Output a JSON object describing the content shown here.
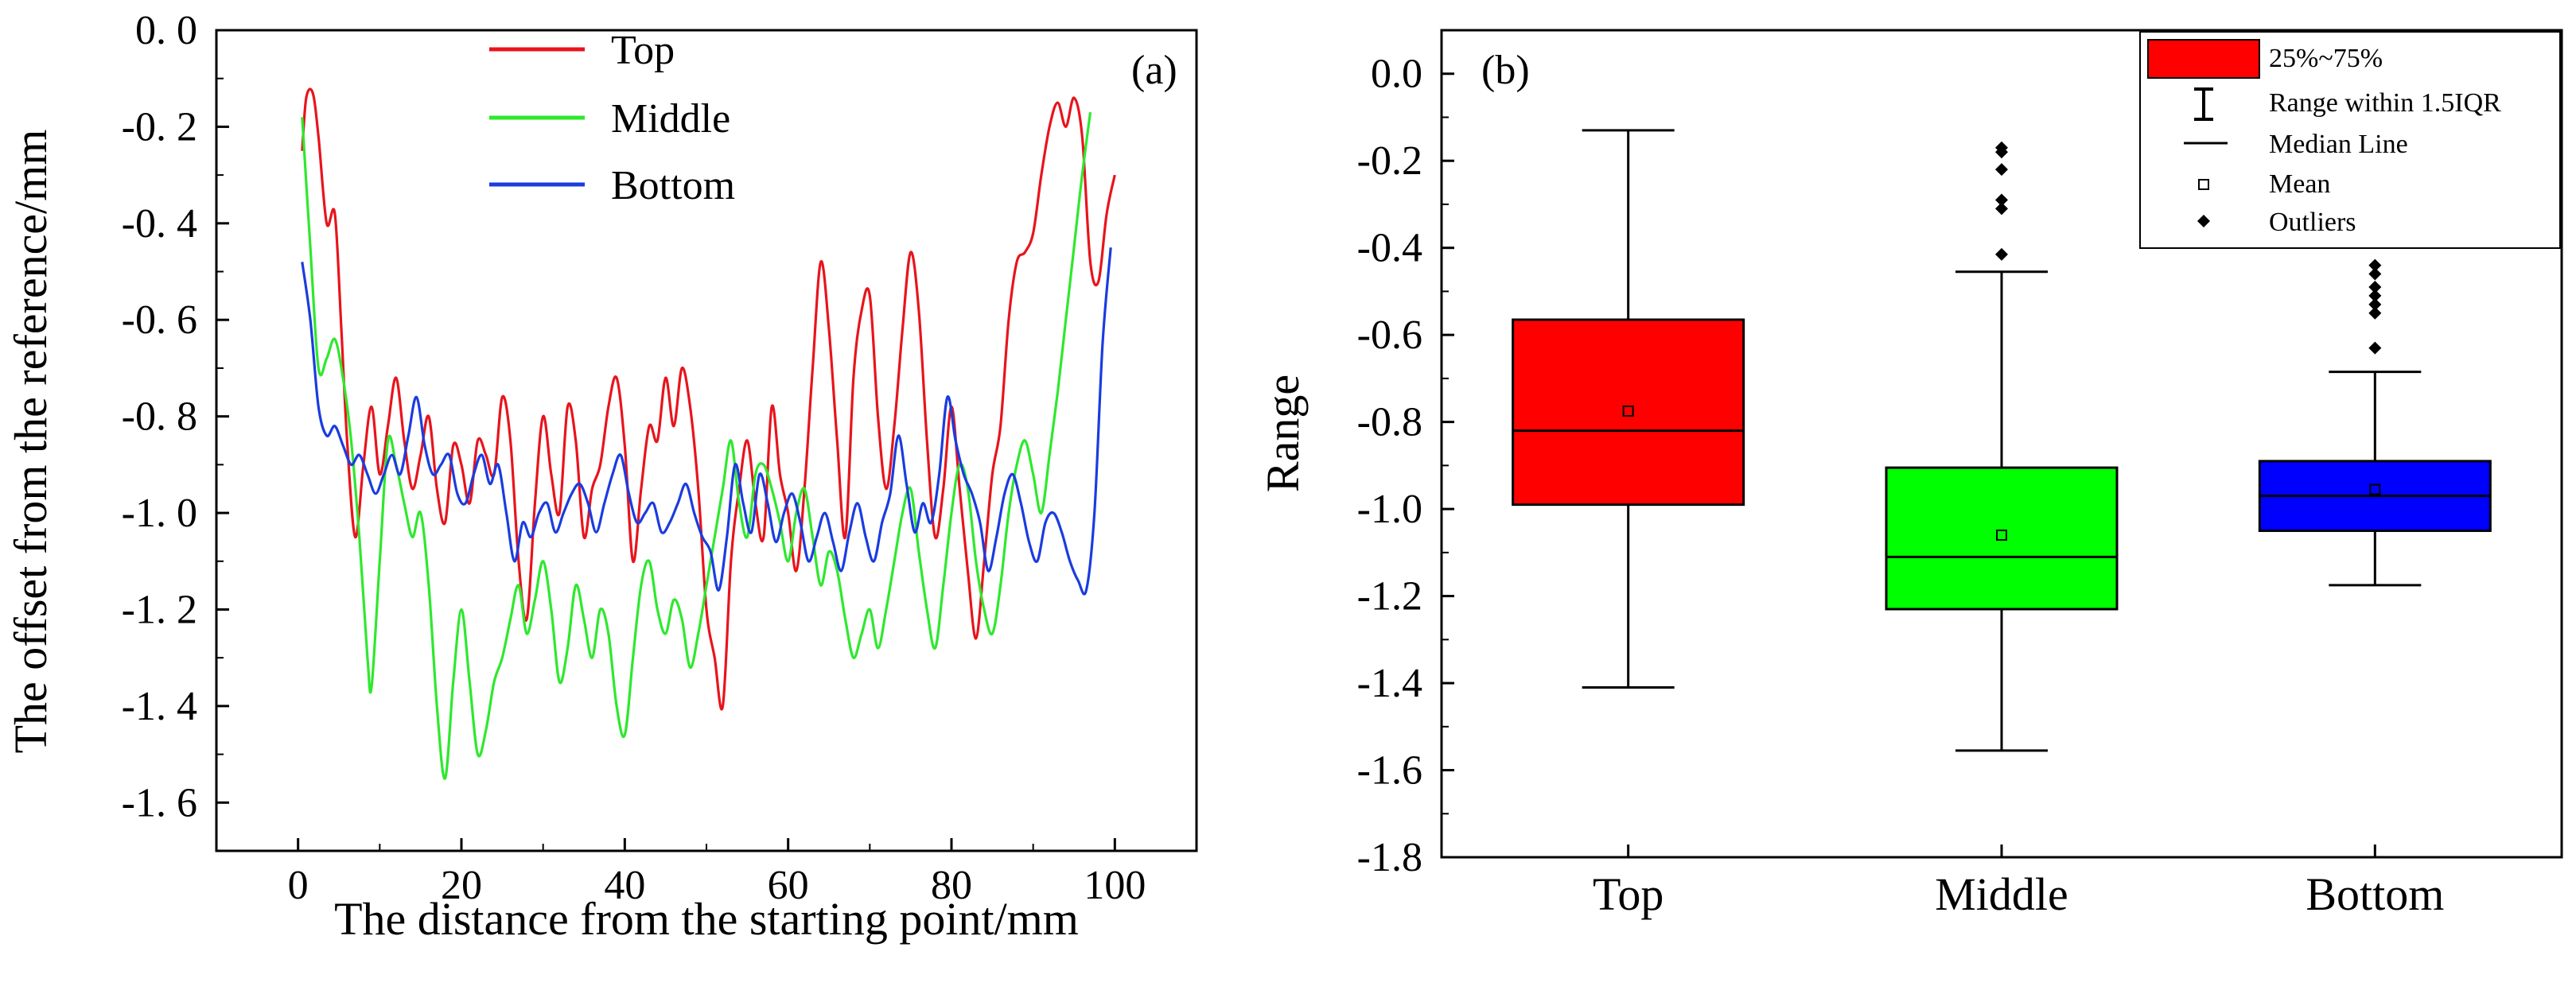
{
  "chart_data": [
    {
      "type": "line",
      "panel_label": "(a)",
      "xlabel": "The distance from the starting point/mm",
      "ylabel": "The offset from the reference/mm",
      "xlim": [
        -10,
        110
      ],
      "ylim": [
        -1.7,
        0.0
      ],
      "xticks": [
        0,
        20,
        40,
        60,
        80,
        100
      ],
      "xtick_labels": [
        "0",
        "20",
        "40",
        "60",
        "80",
        "100"
      ],
      "yticks": [
        0.0,
        -0.2,
        -0.4,
        -0.6,
        -0.8,
        -1.0,
        -1.2,
        -1.4,
        -1.6
      ],
      "ytick_labels": [
        "0. 0",
        "-0. 2",
        "-0. 4",
        "-0. 6",
        "-0. 8",
        "-1. 0",
        "-1. 2",
        "-1. 4",
        "-1. 6"
      ],
      "legend_position": "top-center",
      "series": [
        {
          "name": "Top",
          "color": "#e8141c",
          "x": [
            0.5,
            1.0,
            1.8,
            2.5,
            3.5,
            4.5,
            5.3,
            6.0,
            7.0,
            8.0,
            9.0,
            10.0,
            11.0,
            12.0,
            13.0,
            14.0,
            15.0,
            16.0,
            17.0,
            18.0,
            19.0,
            20.0,
            21.0,
            22.0,
            23.0,
            24.0,
            25.0,
            26.0,
            27.0,
            28.0,
            29.0,
            30.0,
            31.0,
            32.0,
            33.0,
            34.0,
            35.0,
            36.0,
            37.0,
            38.0,
            39.0,
            40.0,
            41.0,
            42.0,
            43.0,
            44.0,
            45.0,
            46.0,
            47.0,
            48.0,
            49.0,
            50.0,
            51.0,
            52.0,
            53.0,
            54.0,
            55.0,
            56.0,
            57.0,
            58.0,
            59.0,
            60.0,
            61.0,
            62.0,
            63.0,
            64.0,
            65.0,
            66.0,
            67.0,
            68.0,
            69.0,
            70.0,
            71.0,
            72.0,
            73.0,
            74.0,
            75.0,
            76.0,
            77.0,
            78.0,
            79.0,
            80.0,
            81.0,
            82.0,
            83.0,
            84.0,
            85.0,
            86.0,
            87.0,
            88.0,
            89.0,
            90.0,
            91.0,
            92.0,
            93.0,
            94.0,
            95.0,
            96.0,
            97.0,
            98.0,
            99.0,
            100.0
          ],
          "y": [
            -0.25,
            -0.14,
            -0.13,
            -0.22,
            -0.4,
            -0.38,
            -0.62,
            -0.85,
            -1.05,
            -0.9,
            -0.78,
            -0.92,
            -0.82,
            -0.72,
            -0.85,
            -0.95,
            -0.88,
            -0.8,
            -0.95,
            -1.02,
            -0.86,
            -0.9,
            -0.98,
            -0.85,
            -0.88,
            -0.92,
            -0.76,
            -0.85,
            -1.1,
            -1.22,
            -0.98,
            -0.8,
            -0.92,
            -1.0,
            -0.78,
            -0.85,
            -1.05,
            -0.95,
            -0.9,
            -0.78,
            -0.72,
            -0.86,
            -1.1,
            -0.95,
            -0.82,
            -0.85,
            -0.72,
            -0.82,
            -0.7,
            -0.78,
            -0.95,
            -1.2,
            -1.3,
            -1.4,
            -1.1,
            -0.95,
            -0.85,
            -0.98,
            -1.05,
            -0.78,
            -0.92,
            -1.0,
            -1.12,
            -0.95,
            -0.7,
            -0.48,
            -0.62,
            -0.85,
            -1.05,
            -0.72,
            -0.58,
            -0.55,
            -0.8,
            -0.95,
            -0.82,
            -0.62,
            -0.46,
            -0.58,
            -0.85,
            -1.05,
            -0.95,
            -0.78,
            -0.95,
            -1.12,
            -1.26,
            -1.1,
            -0.92,
            -0.82,
            -0.6,
            -0.48,
            -0.46,
            -0.42,
            -0.3,
            -0.2,
            -0.15,
            -0.2,
            -0.14,
            -0.22,
            -0.48,
            -0.52,
            -0.38,
            -0.3
          ],
          "description": "Red offset profile along the top row"
        },
        {
          "name": "Middle",
          "color": "#2ee82e",
          "x": [
            0.5,
            1.5,
            2.5,
            3.5,
            4.5,
            5.5,
            6.5,
            7.5,
            8.5,
            9.0,
            10.0,
            11.0,
            12.0,
            13.0,
            14.0,
            15.0,
            16.0,
            17.0,
            18.0,
            19.0,
            20.0,
            21.0,
            22.0,
            23.0,
            24.0,
            25.0,
            26.0,
            27.0,
            28.0,
            29.0,
            30.0,
            31.0,
            32.0,
            33.0,
            34.0,
            35.0,
            36.0,
            37.0,
            38.0,
            39.0,
            40.0,
            41.0,
            42.0,
            43.0,
            44.0,
            45.0,
            46.0,
            47.0,
            48.0,
            49.0,
            50.0,
            51.0,
            52.0,
            53.0,
            54.0,
            55.0,
            56.0,
            57.0,
            58.0,
            59.0,
            60.0,
            61.0,
            62.0,
            63.0,
            64.0,
            65.0,
            66.0,
            67.0,
            68.0,
            69.0,
            70.0,
            71.0,
            72.0,
            73.0,
            74.0,
            75.0,
            76.0,
            77.0,
            78.0,
            79.0,
            80.0,
            81.0,
            82.0,
            83.0,
            84.0,
            85.0,
            86.0,
            87.0,
            88.0,
            89.0,
            90.0,
            91.0,
            92.0,
            93.0,
            94.0,
            95.0,
            96.0,
            97.0
          ],
          "y": [
            -0.18,
            -0.45,
            -0.7,
            -0.68,
            -0.64,
            -0.72,
            -0.85,
            -1.05,
            -1.3,
            -1.36,
            -1.1,
            -0.85,
            -0.9,
            -0.98,
            -1.05,
            -1.0,
            -1.15,
            -1.4,
            -1.55,
            -1.35,
            -1.2,
            -1.35,
            -1.5,
            -1.45,
            -1.35,
            -1.3,
            -1.22,
            -1.15,
            -1.25,
            -1.18,
            -1.1,
            -1.2,
            -1.35,
            -1.28,
            -1.15,
            -1.22,
            -1.3,
            -1.2,
            -1.25,
            -1.4,
            -1.46,
            -1.3,
            -1.15,
            -1.1,
            -1.2,
            -1.25,
            -1.18,
            -1.22,
            -1.32,
            -1.25,
            -1.15,
            -1.05,
            -0.95,
            -0.85,
            -0.98,
            -1.05,
            -0.92,
            -0.9,
            -0.95,
            -1.02,
            -1.1,
            -1.0,
            -0.95,
            -1.05,
            -1.15,
            -1.08,
            -1.12,
            -1.22,
            -1.3,
            -1.25,
            -1.2,
            -1.28,
            -1.2,
            -1.1,
            -1.0,
            -0.95,
            -1.08,
            -1.2,
            -1.28,
            -1.15,
            -1.0,
            -0.9,
            -0.95,
            -1.1,
            -1.2,
            -1.25,
            -1.15,
            -1.0,
            -0.9,
            -0.85,
            -0.92,
            -1.0,
            -0.88,
            -0.75,
            -0.6,
            -0.45,
            -0.3,
            -0.17
          ],
          "description": "Green offset profile along the middle row"
        },
        {
          "name": "Bottom",
          "color": "#1a3ce0",
          "x": [
            0.5,
            1.5,
            2.5,
            3.5,
            4.5,
            5.5,
            6.5,
            7.5,
            8.5,
            9.5,
            10.5,
            11.5,
            12.5,
            13.5,
            14.5,
            15.5,
            16.5,
            17.5,
            18.5,
            19.5,
            20.5,
            21.5,
            22.5,
            23.5,
            24.5,
            25.5,
            26.5,
            27.5,
            28.5,
            29.5,
            30.5,
            31.5,
            32.5,
            33.5,
            34.5,
            35.5,
            36.5,
            37.5,
            38.5,
            39.5,
            40.5,
            41.5,
            42.5,
            43.5,
            44.5,
            45.5,
            46.5,
            47.5,
            48.5,
            49.5,
            50.5,
            51.5,
            52.5,
            53.5,
            54.5,
            55.5,
            56.5,
            57.5,
            58.5,
            59.5,
            60.5,
            61.5,
            62.5,
            63.5,
            64.5,
            65.5,
            66.5,
            67.5,
            68.5,
            69.5,
            70.5,
            71.5,
            72.5,
            73.5,
            74.5,
            75.5,
            76.5,
            77.5,
            78.5,
            79.5,
            80.5,
            81.5,
            82.5,
            83.5,
            84.5,
            85.5,
            86.5,
            87.5,
            88.5,
            89.5,
            90.5,
            91.5,
            92.5,
            93.5,
            94.5,
            95.5,
            96.5,
            97.5,
            98.5,
            99.5
          ],
          "y": [
            -0.48,
            -0.6,
            -0.78,
            -0.84,
            -0.82,
            -0.86,
            -0.9,
            -0.88,
            -0.92,
            -0.96,
            -0.92,
            -0.88,
            -0.92,
            -0.84,
            -0.76,
            -0.86,
            -0.92,
            -0.9,
            -0.88,
            -0.96,
            -0.98,
            -0.92,
            -0.88,
            -0.94,
            -0.9,
            -1.0,
            -1.1,
            -1.02,
            -1.05,
            -1.0,
            -0.98,
            -1.04,
            -1.0,
            -0.96,
            -0.94,
            -0.98,
            -1.04,
            -0.98,
            -0.92,
            -0.88,
            -0.96,
            -1.02,
            -1.0,
            -0.98,
            -1.04,
            -1.02,
            -0.98,
            -0.94,
            -1.0,
            -1.05,
            -1.08,
            -1.16,
            -1.05,
            -0.9,
            -0.98,
            -1.04,
            -0.92,
            -0.98,
            -1.06,
            -1.0,
            -0.96,
            -1.02,
            -1.1,
            -1.05,
            -1.0,
            -1.06,
            -1.12,
            -1.04,
            -0.98,
            -1.05,
            -1.1,
            -1.02,
            -0.96,
            -0.84,
            -0.94,
            -1.04,
            -0.98,
            -1.02,
            -0.92,
            -0.76,
            -0.85,
            -0.92,
            -0.96,
            -1.02,
            -1.12,
            -1.05,
            -0.96,
            -0.92,
            -0.98,
            -1.06,
            -1.1,
            -1.02,
            -1.0,
            -1.04,
            -1.1,
            -1.14,
            -1.16,
            -1.0,
            -0.65,
            -0.45
          ],
          "description": "Blue offset profile along the bottom row"
        }
      ]
    },
    {
      "type": "box",
      "panel_label": "(b)",
      "xlabel": "",
      "ylabel": "Range",
      "ylim": [
        -1.8,
        0.1
      ],
      "yticks": [
        0.0,
        -0.2,
        -0.4,
        -0.6,
        -0.8,
        -1.0,
        -1.2,
        -1.4,
        -1.6,
        -1.8
      ],
      "ytick_labels": [
        "0.0",
        "-0.2",
        "-0.4",
        "-0.6",
        "-0.8",
        "-1.0",
        "-1.2",
        "-1.4",
        "-1.6",
        "-1.8"
      ],
      "categories": [
        "Top",
        "Middle",
        "Bottom"
      ],
      "legend_position": "top-right",
      "legend": {
        "box_label": "25%~75%",
        "whisker_label": "Range within 1.5IQR",
        "median_label": "Median Line",
        "mean_label": "Mean",
        "outlier_label": "Outliers"
      },
      "boxes": [
        {
          "name": "Top",
          "color": "#ff0000",
          "whisker_low": -1.41,
          "q1": -0.99,
          "median": -0.82,
          "q3": -0.565,
          "whisker_high": -0.13,
          "mean": -0.775,
          "outliers": []
        },
        {
          "name": "Middle",
          "color": "#00ff00",
          "whisker_low": -1.555,
          "q1": -1.23,
          "median": -1.11,
          "q3": -0.905,
          "whisker_high": -0.455,
          "mean": -1.06,
          "outliers": [
            -0.17,
            -0.18,
            -0.22,
            -0.29,
            -0.31,
            -0.415
          ]
        },
        {
          "name": "Bottom",
          "color": "#0000ff",
          "whisker_low": -1.175,
          "q1": -1.05,
          "median": -0.97,
          "q3": -0.89,
          "whisker_high": -0.685,
          "mean": -0.955,
          "outliers": [
            -0.44,
            -0.46,
            -0.49,
            -0.51,
            -0.53,
            -0.55,
            -0.63
          ]
        }
      ]
    }
  ]
}
